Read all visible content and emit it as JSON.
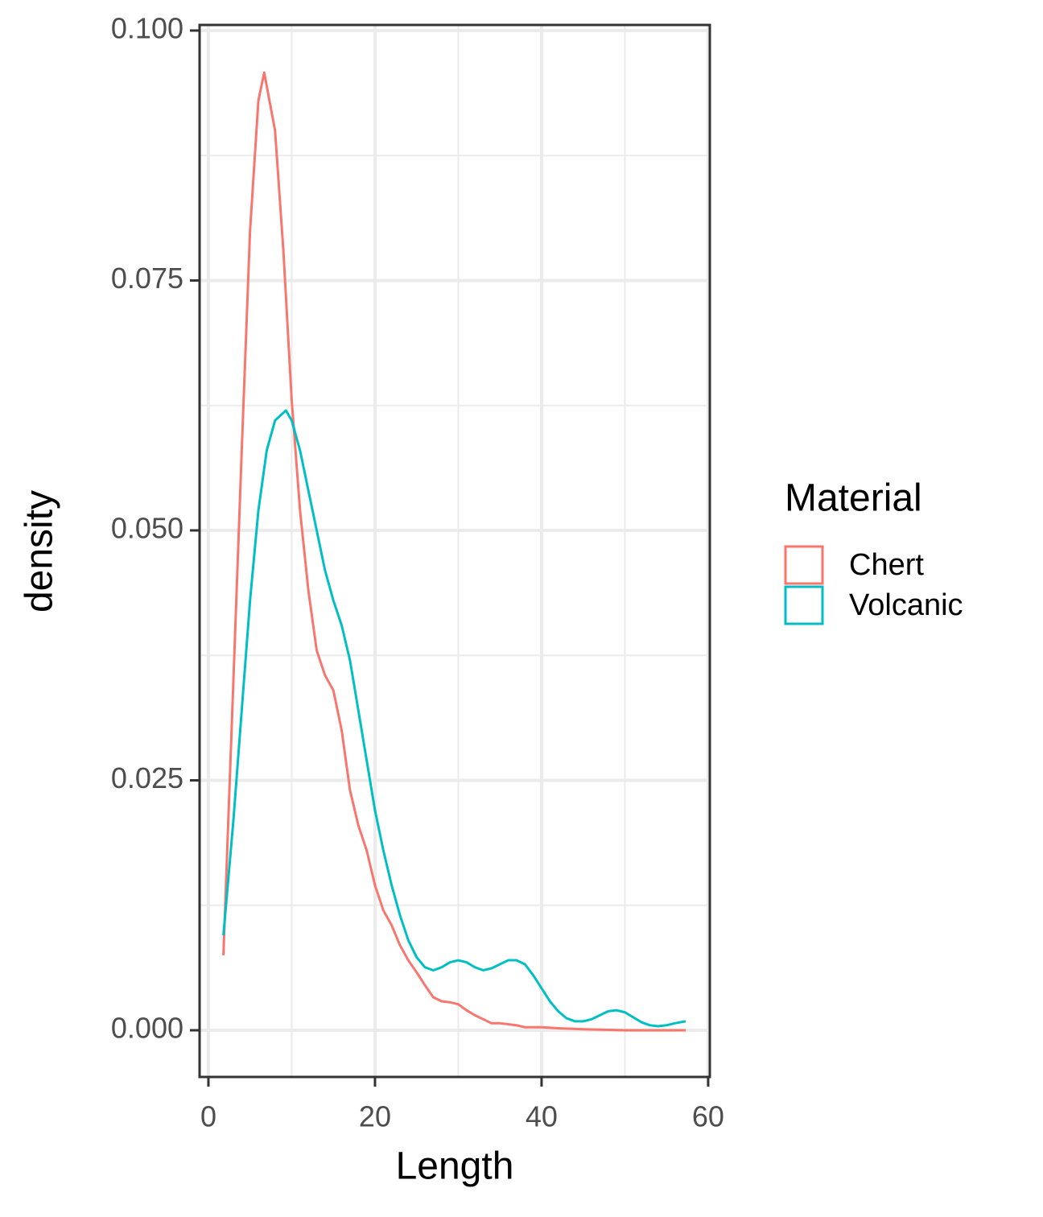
{
  "chart_data": {
    "type": "line",
    "x_label": "Length",
    "y_label": "density",
    "legend_title": "Material",
    "legend": "right",
    "xlim": [
      -1.06,
      60.2
    ],
    "xticks": [
      0,
      20,
      40,
      60
    ],
    "ylim": [
      -0.00467,
      0.10056
    ],
    "yticks": [
      {
        "value": 0,
        "label": "0.000"
      },
      {
        "value": 0.025,
        "label": "0.025"
      },
      {
        "value": 0.05,
        "label": "0.050"
      },
      {
        "value": 0.075,
        "label": "0.075"
      },
      {
        "value": 0.1,
        "label": "0.100"
      }
    ],
    "grid": true,
    "minor_grid": true,
    "series": [
      {
        "name": "Chert",
        "color": "#F8766D",
        "x": [
          1.8,
          3,
          4,
          5,
          6,
          6.7,
          8,
          9,
          10,
          11,
          12,
          13,
          14,
          15,
          16,
          17,
          18,
          19,
          20,
          21,
          22,
          23,
          24,
          25,
          26,
          27,
          28,
          29,
          30,
          31,
          32,
          33,
          34,
          35,
          36,
          37,
          38,
          40,
          42,
          45,
          50,
          55,
          57.3
        ],
        "values": [
          0.0075,
          0.035,
          0.058,
          0.08,
          0.093,
          0.0958,
          0.09,
          0.078,
          0.063,
          0.052,
          0.044,
          0.038,
          0.0355,
          0.034,
          0.03,
          0.024,
          0.0205,
          0.018,
          0.0145,
          0.012,
          0.0105,
          0.0085,
          0.007,
          0.0058,
          0.0045,
          0.0033,
          0.0029,
          0.0028,
          0.0026,
          0.002,
          0.0015,
          0.0011,
          0.0007,
          0.0007,
          0.0006,
          0.0005,
          0.0003,
          0.0003,
          0.0002,
          0.0001,
          0.0,
          0.0,
          0.0
        ]
      },
      {
        "name": "Volcanic",
        "color": "#00BFC4",
        "x": [
          1.8,
          3,
          4,
          5,
          6,
          7,
          8,
          9.3,
          10,
          11,
          12,
          13,
          14,
          15,
          16,
          17,
          18,
          19,
          20,
          21,
          22,
          23,
          24,
          25,
          26,
          27,
          28,
          29,
          30,
          31,
          32,
          33,
          34,
          35,
          36,
          37,
          38,
          39,
          40,
          41,
          42,
          43,
          44,
          45,
          46,
          47,
          48,
          49,
          50,
          51,
          52,
          53,
          54,
          55,
          56,
          57.3
        ],
        "values": [
          0.0095,
          0.021,
          0.032,
          0.043,
          0.052,
          0.058,
          0.061,
          0.062,
          0.061,
          0.058,
          0.054,
          0.05,
          0.046,
          0.043,
          0.0405,
          0.037,
          0.032,
          0.027,
          0.022,
          0.018,
          0.0145,
          0.0115,
          0.009,
          0.0073,
          0.0063,
          0.006,
          0.0063,
          0.0068,
          0.007,
          0.0068,
          0.0063,
          0.006,
          0.0062,
          0.0066,
          0.007,
          0.007,
          0.0066,
          0.0055,
          0.0042,
          0.0029,
          0.0019,
          0.0012,
          0.0009,
          0.0009,
          0.0011,
          0.0015,
          0.0019,
          0.002,
          0.0018,
          0.0013,
          0.0008,
          0.0005,
          0.0004,
          0.0005,
          0.0007,
          0.0009
        ]
      }
    ]
  }
}
